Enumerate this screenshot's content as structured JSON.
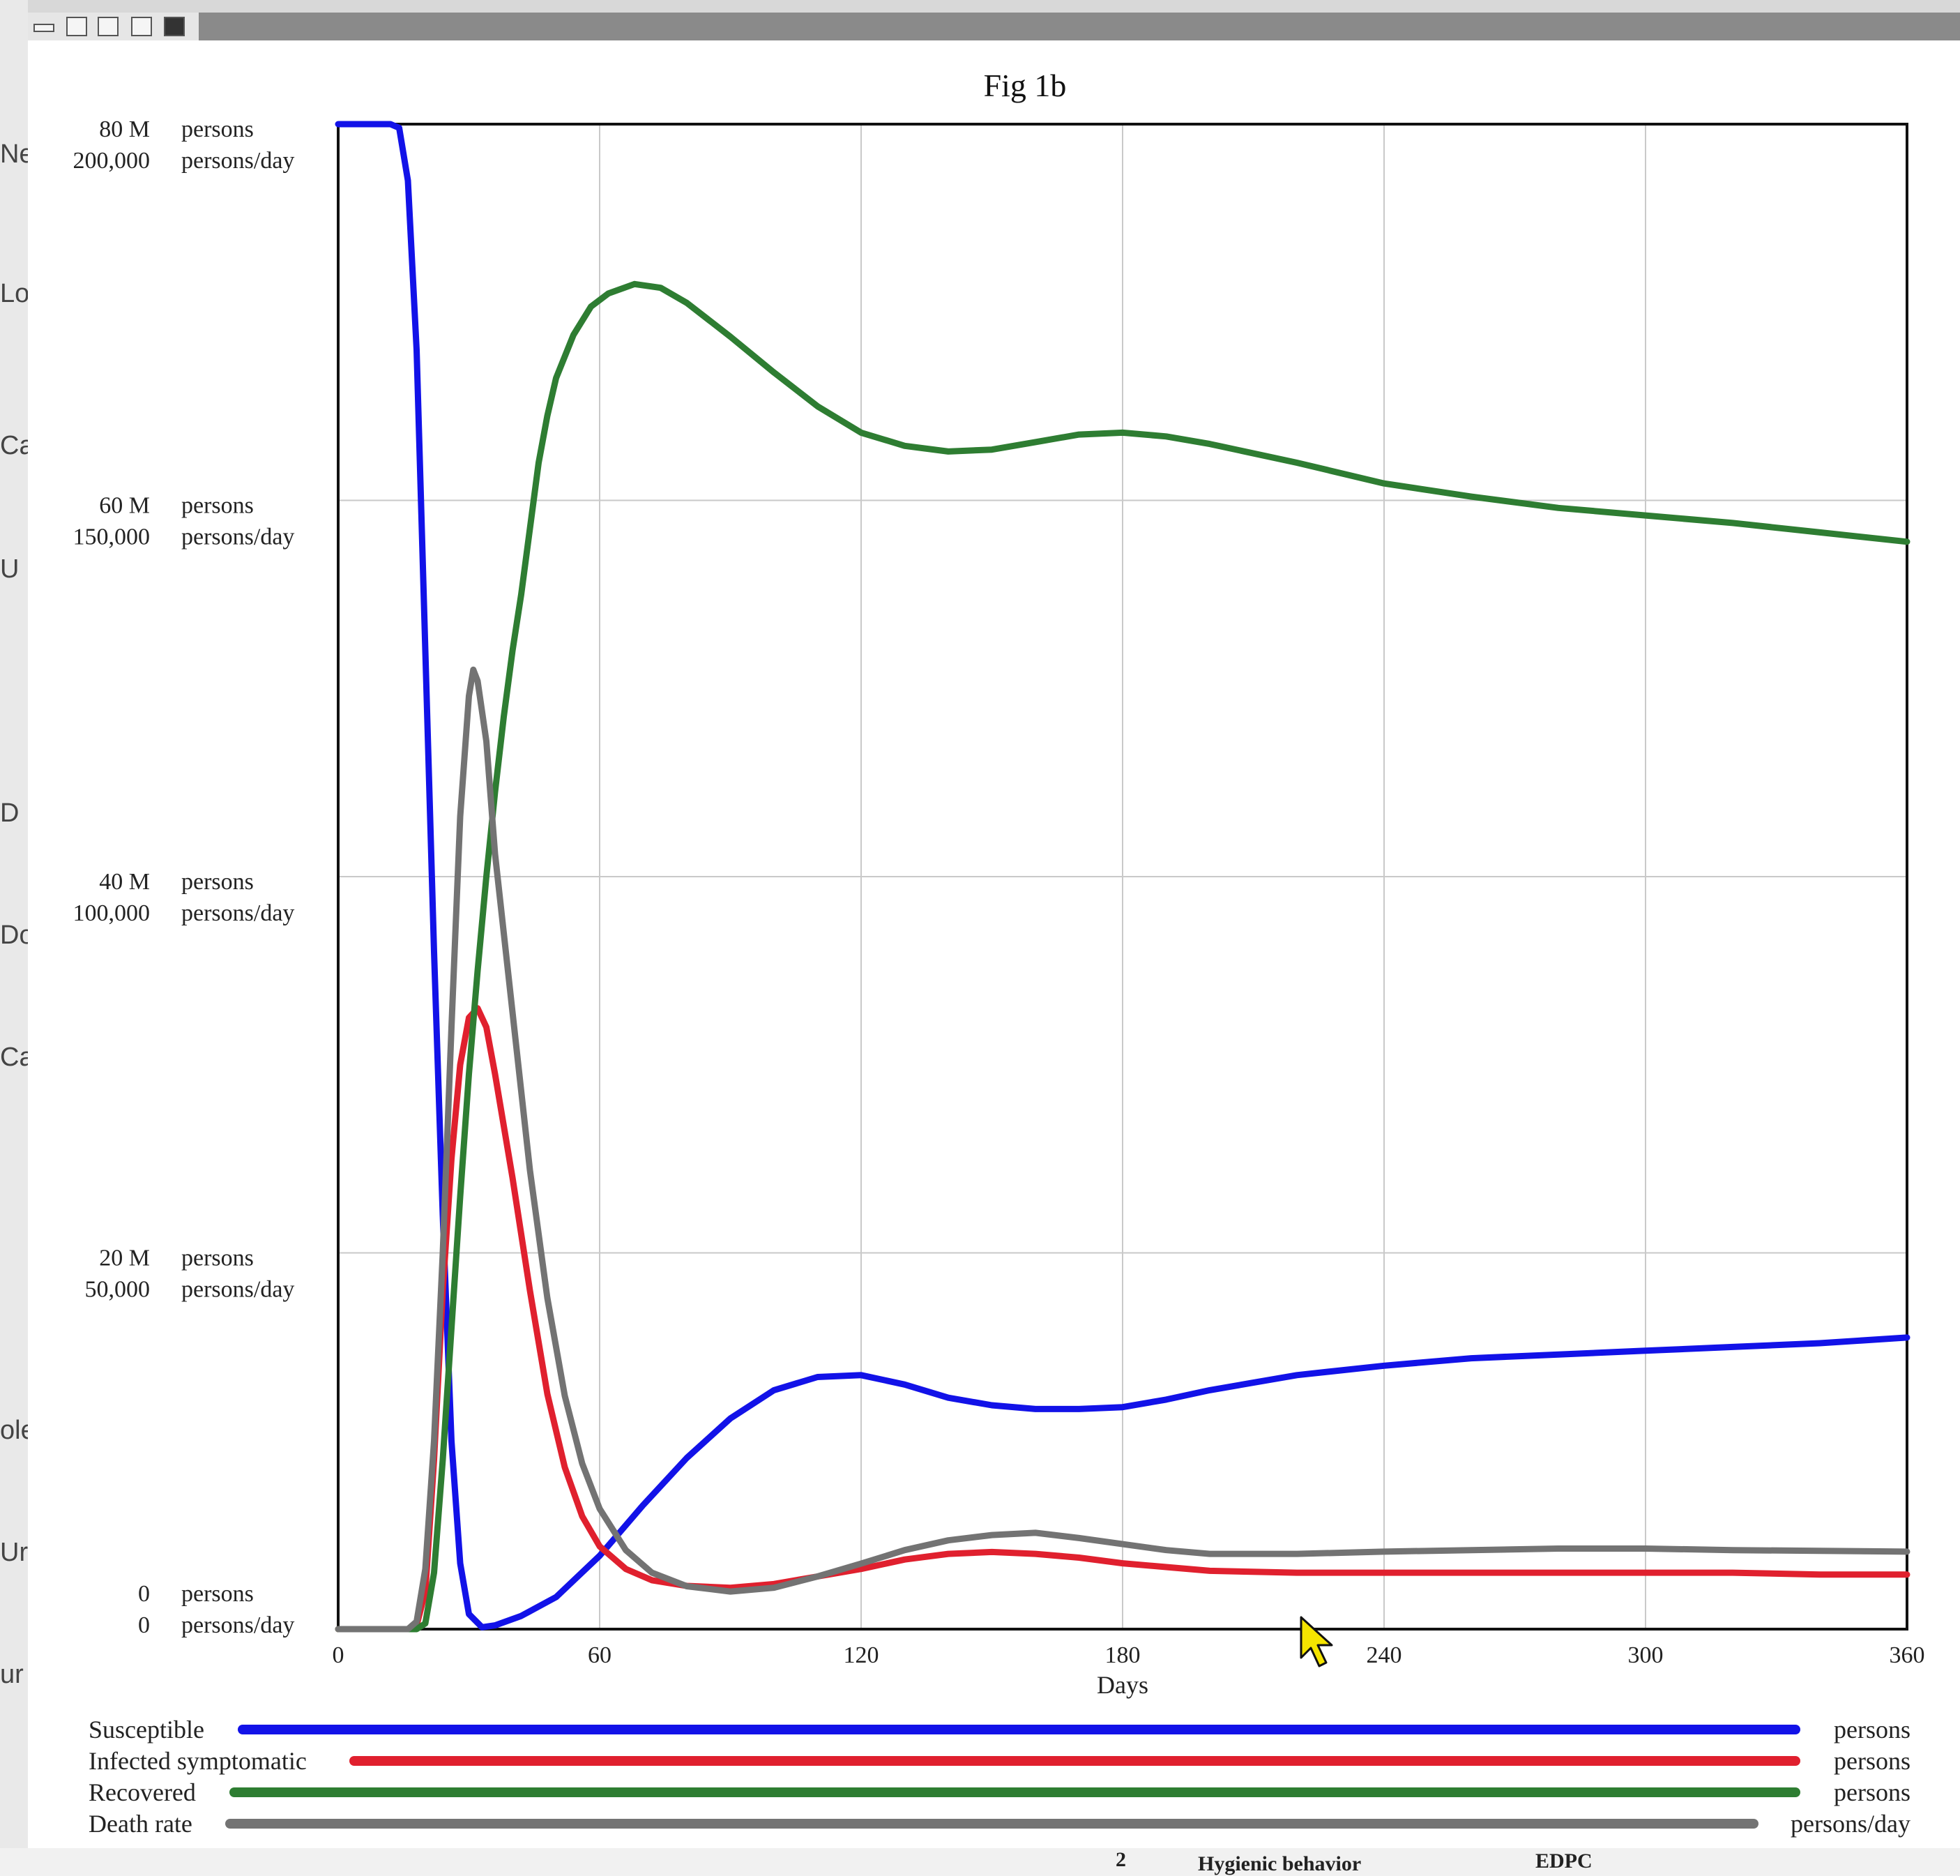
{
  "window": {
    "toolbar_icons": [
      "minimize-icon",
      "lock-icon",
      "print-icon",
      "clipboard-icon",
      "save-icon"
    ]
  },
  "background": {
    "left_fragments": [
      "Ne",
      "Loc",
      "Ca",
      "U",
      "D",
      "Do",
      "Ca",
      "ole",
      "Ur",
      "ur"
    ],
    "bottom_labels": [
      "2",
      "Hygienic behavior",
      "EDPC"
    ]
  },
  "chart_data": {
    "type": "line",
    "title": "Fig 1b",
    "xlabel": "Days",
    "xlim": [
      0,
      360
    ],
    "x_ticks": [
      "0",
      "60",
      "120",
      "180",
      "240",
      "300",
      "360"
    ],
    "y_axes": [
      {
        "unit": "persons",
        "tick_labels": [
          "0",
          "20 M",
          "40 M",
          "60 M",
          "80 M"
        ],
        "ylim": [
          0,
          80000000
        ]
      },
      {
        "unit": "persons/day",
        "tick_labels": [
          "0",
          "50,000",
          "100,000",
          "150,000",
          "200,000"
        ],
        "ylim": [
          0,
          200000
        ]
      }
    ],
    "grid": true,
    "legend_position": "bottom",
    "series": [
      {
        "name": "Susceptible",
        "unit": "persons",
        "axis": 0,
        "color": "#1212e8",
        "points": [
          [
            0,
            80000000
          ],
          [
            12,
            80000000
          ],
          [
            14,
            79800000
          ],
          [
            16,
            77000000
          ],
          [
            18,
            68000000
          ],
          [
            20,
            52000000
          ],
          [
            22,
            36000000
          ],
          [
            24,
            22000000
          ],
          [
            26,
            10000000
          ],
          [
            28,
            3500000
          ],
          [
            30,
            800000
          ],
          [
            33,
            100000
          ],
          [
            36,
            200000
          ],
          [
            42,
            700000
          ],
          [
            50,
            1700000
          ],
          [
            60,
            3900000
          ],
          [
            70,
            6600000
          ],
          [
            80,
            9100000
          ],
          [
            90,
            11200000
          ],
          [
            100,
            12700000
          ],
          [
            110,
            13400000
          ],
          [
            120,
            13500000
          ],
          [
            130,
            13000000
          ],
          [
            140,
            12300000
          ],
          [
            150,
            11900000
          ],
          [
            160,
            11700000
          ],
          [
            170,
            11700000
          ],
          [
            180,
            11800000
          ],
          [
            190,
            12200000
          ],
          [
            200,
            12700000
          ],
          [
            210,
            13100000
          ],
          [
            220,
            13500000
          ],
          [
            240,
            14000000
          ],
          [
            260,
            14400000
          ],
          [
            280,
            14600000
          ],
          [
            300,
            14800000
          ],
          [
            320,
            15000000
          ],
          [
            340,
            15200000
          ],
          [
            360,
            15500000
          ]
        ]
      },
      {
        "name": "Infected symptomatic",
        "unit": "persons",
        "axis": 0,
        "color": "#e0202e",
        "points": [
          [
            0,
            0
          ],
          [
            16,
            0
          ],
          [
            18,
            200000
          ],
          [
            20,
            2000000
          ],
          [
            22,
            9000000
          ],
          [
            24,
            18000000
          ],
          [
            26,
            25000000
          ],
          [
            28,
            30000000
          ],
          [
            30,
            32500000
          ],
          [
            32,
            33000000
          ],
          [
            34,
            32000000
          ],
          [
            36,
            29500000
          ],
          [
            40,
            24000000
          ],
          [
            44,
            18000000
          ],
          [
            48,
            12500000
          ],
          [
            52,
            8600000
          ],
          [
            56,
            6000000
          ],
          [
            60,
            4400000
          ],
          [
            66,
            3200000
          ],
          [
            72,
            2600000
          ],
          [
            80,
            2300000
          ],
          [
            90,
            2200000
          ],
          [
            100,
            2400000
          ],
          [
            110,
            2800000
          ],
          [
            120,
            3200000
          ],
          [
            130,
            3700000
          ],
          [
            140,
            4000000
          ],
          [
            150,
            4100000
          ],
          [
            160,
            4000000
          ],
          [
            170,
            3800000
          ],
          [
            180,
            3500000
          ],
          [
            190,
            3300000
          ],
          [
            200,
            3100000
          ],
          [
            220,
            3000000
          ],
          [
            240,
            3000000
          ],
          [
            260,
            3000000
          ],
          [
            280,
            3000000
          ],
          [
            300,
            3000000
          ],
          [
            320,
            3000000
          ],
          [
            340,
            2900000
          ],
          [
            360,
            2900000
          ]
        ]
      },
      {
        "name": "Recovered",
        "unit": "persons",
        "axis": 0,
        "color": "#2e7d32",
        "points": [
          [
            0,
            0
          ],
          [
            18,
            0
          ],
          [
            20,
            300000
          ],
          [
            22,
            3000000
          ],
          [
            24,
            9000000
          ],
          [
            26,
            16000000
          ],
          [
            28,
            23000000
          ],
          [
            30,
            29500000
          ],
          [
            32,
            35000000
          ],
          [
            34,
            40000000
          ],
          [
            36,
            44500000
          ],
          [
            38,
            48500000
          ],
          [
            40,
            52000000
          ],
          [
            42,
            55000000
          ],
          [
            44,
            58500000
          ],
          [
            46,
            62000000
          ],
          [
            48,
            64500000
          ],
          [
            50,
            66500000
          ],
          [
            54,
            68800000
          ],
          [
            58,
            70300000
          ],
          [
            62,
            71000000
          ],
          [
            68,
            71500000
          ],
          [
            74,
            71300000
          ],
          [
            80,
            70500000
          ],
          [
            90,
            68700000
          ],
          [
            100,
            66800000
          ],
          [
            110,
            65000000
          ],
          [
            120,
            63600000
          ],
          [
            130,
            62900000
          ],
          [
            140,
            62600000
          ],
          [
            150,
            62700000
          ],
          [
            160,
            63100000
          ],
          [
            170,
            63500000
          ],
          [
            180,
            63600000
          ],
          [
            190,
            63400000
          ],
          [
            200,
            63000000
          ],
          [
            220,
            62000000
          ],
          [
            240,
            60900000
          ],
          [
            260,
            60200000
          ],
          [
            280,
            59600000
          ],
          [
            300,
            59200000
          ],
          [
            320,
            58800000
          ],
          [
            340,
            58300000
          ],
          [
            360,
            57800000
          ]
        ]
      },
      {
        "name": "Death rate",
        "unit": "persons/day",
        "axis": 1,
        "color": "#737373",
        "points": [
          [
            0,
            0
          ],
          [
            16,
            0
          ],
          [
            18,
            1000
          ],
          [
            20,
            8000
          ],
          [
            22,
            25000
          ],
          [
            24,
            50000
          ],
          [
            26,
            80000
          ],
          [
            28,
            108000
          ],
          [
            30,
            124000
          ],
          [
            31,
            127500
          ],
          [
            32,
            126000
          ],
          [
            34,
            118000
          ],
          [
            36,
            103000
          ],
          [
            40,
            82000
          ],
          [
            44,
            61000
          ],
          [
            48,
            44000
          ],
          [
            52,
            31000
          ],
          [
            56,
            22000
          ],
          [
            60,
            16000
          ],
          [
            66,
            10500
          ],
          [
            72,
            7500
          ],
          [
            80,
            5700
          ],
          [
            90,
            5000
          ],
          [
            100,
            5500
          ],
          [
            110,
            7000
          ],
          [
            120,
            8700
          ],
          [
            130,
            10500
          ],
          [
            140,
            11800
          ],
          [
            150,
            12500
          ],
          [
            160,
            12800
          ],
          [
            170,
            12100
          ],
          [
            180,
            11300
          ],
          [
            190,
            10500
          ],
          [
            200,
            10000
          ],
          [
            220,
            10000
          ],
          [
            240,
            10300
          ],
          [
            260,
            10500
          ],
          [
            280,
            10700
          ],
          [
            300,
            10700
          ],
          [
            320,
            10500
          ],
          [
            340,
            10400
          ],
          [
            360,
            10300
          ]
        ]
      }
    ]
  },
  "legend": [
    {
      "label": "Susceptible",
      "unit": "persons",
      "color": "#1212e8"
    },
    {
      "label": "Infected symptomatic",
      "unit": "persons",
      "color": "#e0202e"
    },
    {
      "label": "Recovered",
      "unit": "persons",
      "color": "#2e7d32"
    },
    {
      "label": "Death rate",
      "unit": "persons/day",
      "color": "#737373"
    }
  ]
}
